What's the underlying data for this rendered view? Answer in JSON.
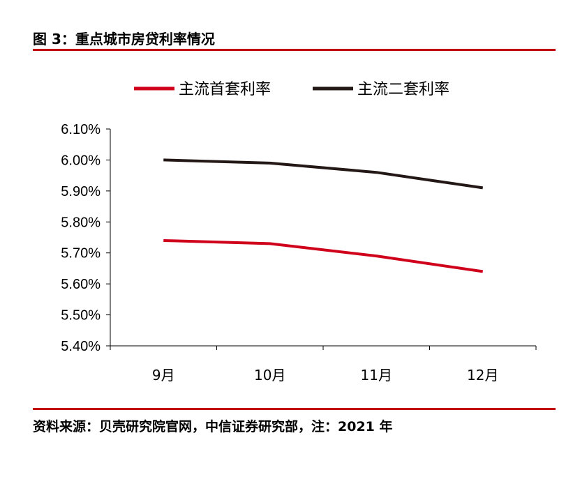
{
  "figure_title": "图 3：重点城市房贷利率情况",
  "source_note": "资料来源：贝壳研究院官网，中信证券研究部，注：2021 年",
  "colors": {
    "accent_rule": "#c0000c",
    "series_first": "#d0021b",
    "series_second": "#231815"
  },
  "chart_data": {
    "type": "line",
    "categories": [
      "9月",
      "10月",
      "11月",
      "12月"
    ],
    "series": [
      {
        "name": "主流首套利率",
        "values": [
          5.74,
          5.73,
          5.69,
          5.64
        ],
        "color": "#d0021b"
      },
      {
        "name": "主流二套利率",
        "values": [
          6.0,
          5.99,
          5.96,
          5.91
        ],
        "color": "#231815"
      }
    ],
    "y_ticks": [
      "5.40%",
      "5.50%",
      "5.60%",
      "5.70%",
      "5.80%",
      "5.90%",
      "6.00%",
      "6.10%"
    ],
    "ylim": [
      5.4,
      6.1
    ],
    "y_unit": "%",
    "grid": false,
    "legend_position": "top"
  }
}
